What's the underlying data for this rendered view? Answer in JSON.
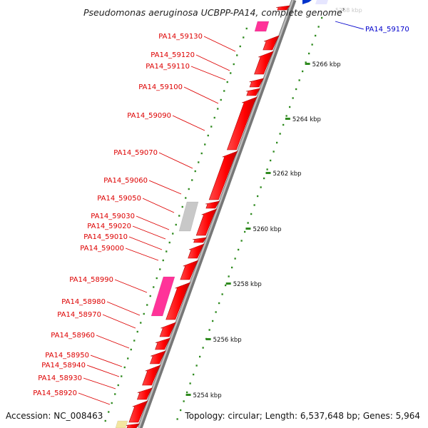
{
  "title": "Pseudomonas aeruginosa UCBPP-PA14, complete genome",
  "title_suffix": "³",
  "accession": "Accession: NC_008463",
  "topology": "Topology: circular; Length: 6,537,648 bp; Genes: 5,964",
  "colors": {
    "gene": "#ff0000",
    "gene_shadow": "#b30000",
    "pink": "#ff3399",
    "gray_gene": "#c8c8c8",
    "yellow_gene": "#f3e6a0",
    "backbone": "#9a9a9a",
    "tick": "#2f8a1f",
    "label_red": "#dd0000",
    "label_blue": "#0000cc"
  },
  "scale": {
    "unit": "kbp",
    "ticks": [
      "5254 kbp",
      "5256 kbp",
      "5258 kbp",
      "5260 kbp",
      "5262 kbp",
      "5264 kbp",
      "5266 kbp"
    ]
  },
  "gene_labels": [
    {
      "text": "PA14_59170",
      "color": "blue"
    },
    {
      "text": "PA14_59130",
      "color": "red"
    },
    {
      "text": "PA14_59120",
      "color": "red"
    },
    {
      "text": "PA14_59110",
      "color": "red"
    },
    {
      "text": "PA14_59100",
      "color": "red"
    },
    {
      "text": "PA14_59090",
      "color": "red"
    },
    {
      "text": "PA14_59070",
      "color": "red"
    },
    {
      "text": "PA14_59060",
      "color": "red"
    },
    {
      "text": "PA14_59050",
      "color": "red"
    },
    {
      "text": "PA14_59030",
      "color": "red"
    },
    {
      "text": "PA14_59020",
      "color": "red"
    },
    {
      "text": "PA14_59010",
      "color": "red"
    },
    {
      "text": "PA14_59000",
      "color": "red"
    },
    {
      "text": "PA14_58990",
      "color": "red"
    },
    {
      "text": "PA14_58980",
      "color": "red"
    },
    {
      "text": "PA14_58970",
      "color": "red"
    },
    {
      "text": "PA14_58960",
      "color": "red"
    },
    {
      "text": "PA14_58950",
      "color": "red"
    },
    {
      "text": "PA14_58940",
      "color": "red"
    },
    {
      "text": "PA14_58930",
      "color": "red"
    },
    {
      "text": "PA14_58920",
      "color": "red"
    }
  ]
}
